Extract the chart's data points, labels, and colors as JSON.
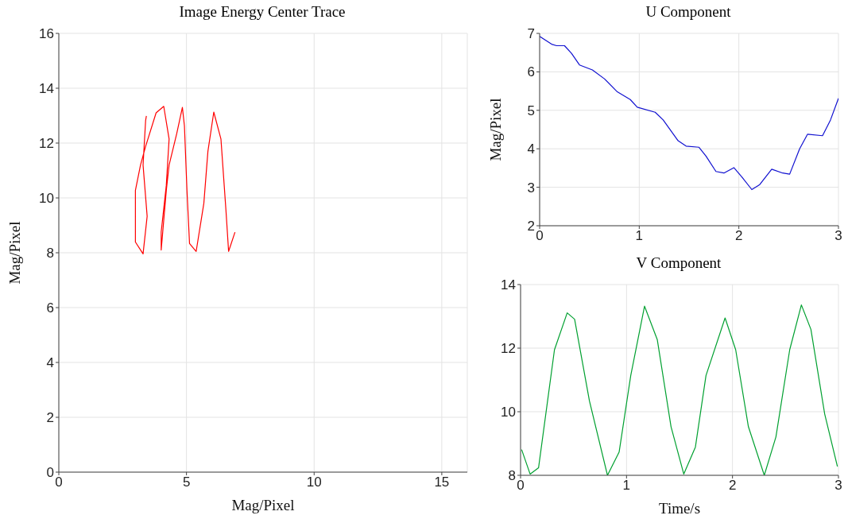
{
  "chart_data": [
    {
      "type": "line",
      "title": "Image Energy Center Trace",
      "xlabel": "Mag/Pixel",
      "ylabel": "Mag/Pixel",
      "xlim": [
        0,
        16
      ],
      "ylim": [
        0,
        16
      ],
      "xticks": [
        0,
        5,
        10,
        15
      ],
      "yticks": [
        0,
        2,
        4,
        6,
        8,
        10,
        12,
        14,
        16
      ],
      "grid": true,
      "series": [
        {
          "color": "#ff0000",
          "x": [
            6.9,
            6.65,
            6.55,
            6.35,
            6.07,
            5.84,
            5.68,
            5.38,
            5.12,
            5.02,
            4.92,
            4.84,
            4.62,
            4.32,
            4.21,
            4.01,
            4.01,
            4.21,
            4.32,
            4.11,
            3.81,
            3.4,
            3.2,
            3.0,
            3.0,
            3.3,
            3.46,
            3.3,
            3.4,
            3.43
          ],
          "values": [
            8.75,
            8.05,
            9.5,
            12.15,
            13.13,
            11.7,
            9.8,
            8.05,
            8.34,
            10.27,
            12.63,
            13.3,
            12.35,
            11.2,
            10.27,
            8.1,
            8.76,
            10.46,
            12.15,
            13.34,
            13.1,
            11.88,
            11.2,
            10.27,
            8.39,
            7.96,
            9.33,
            11.2,
            12.82,
            12.99
          ]
        }
      ]
    },
    {
      "type": "line",
      "title": "U Component",
      "ylabel": "Mag/Pixel",
      "xlim": [
        0,
        3
      ],
      "ylim": [
        2,
        7
      ],
      "xticks": [
        0,
        1,
        2,
        3
      ],
      "yticks": [
        2,
        3,
        4,
        5,
        6,
        7
      ],
      "grid": true,
      "series": [
        {
          "color": "#1010d0",
          "x": [
            0,
            0.12,
            0.17,
            0.25,
            0.32,
            0.4,
            0.53,
            0.65,
            0.78,
            0.91,
            0.98,
            1.16,
            1.24,
            1.39,
            1.47,
            1.6,
            1.67,
            1.77,
            1.85,
            1.95,
            2.03,
            2.13,
            2.21,
            2.33,
            2.44,
            2.51,
            2.61,
            2.69,
            2.84,
            2.92,
            3.0
          ],
          "values": [
            6.92,
            6.72,
            6.68,
            6.68,
            6.48,
            6.18,
            6.05,
            5.82,
            5.48,
            5.28,
            5.08,
            4.95,
            4.75,
            4.21,
            4.07,
            4.04,
            3.81,
            3.41,
            3.37,
            3.51,
            3.27,
            2.94,
            3.07,
            3.47,
            3.37,
            3.34,
            4.0,
            4.38,
            4.34,
            4.75,
            5.31
          ]
        }
      ]
    },
    {
      "type": "line",
      "title": "V Component",
      "xlabel": "Time/s",
      "xlim": [
        0,
        3
      ],
      "ylim": [
        8,
        14
      ],
      "xticks": [
        0,
        1,
        2,
        3
      ],
      "yticks": [
        8,
        10,
        12,
        14
      ],
      "grid": true,
      "series": [
        {
          "color": "#00a030",
          "x": [
            0.01,
            0.09,
            0.17,
            0.32,
            0.44,
            0.51,
            0.65,
            0.82,
            0.93,
            1.04,
            1.17,
            1.29,
            1.42,
            1.54,
            1.65,
            1.75,
            1.93,
            2.03,
            2.15,
            2.3,
            2.41,
            2.54,
            2.65,
            2.74,
            2.87,
            2.99
          ],
          "values": [
            8.81,
            8.04,
            8.24,
            11.95,
            13.11,
            12.91,
            10.34,
            8.0,
            8.73,
            11.14,
            13.32,
            12.27,
            9.53,
            8.04,
            8.89,
            11.14,
            12.95,
            11.95,
            9.53,
            8.0,
            9.21,
            11.95,
            13.36,
            12.59,
            9.93,
            8.28
          ]
        }
      ]
    }
  ]
}
